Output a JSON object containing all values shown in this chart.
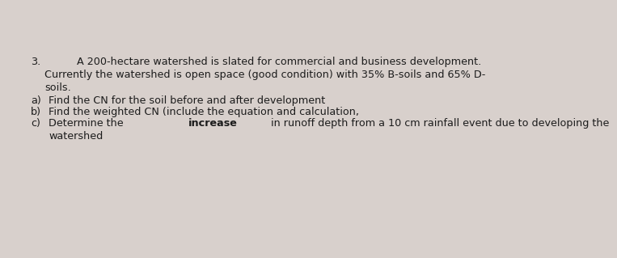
{
  "background_color": "#d8d0cc",
  "number": "3.",
  "line1": "A 200-hectare watershed is slated for commercial and business development.",
  "line2": "Currently the watershed is open space (good condition) with 35% B-soils and 65% D-",
  "line3": "soils.",
  "item_a_label": "a)",
  "item_a_text": "Find the CN for the soil before and after development",
  "item_b_label": "b)",
  "item_b_text": "Find the weighted CN (include the equation and calculation,",
  "item_c_label": "c)",
  "item_c_pre": "Determine the ",
  "item_c_bold": "increase",
  "item_c_post": " in runoff depth from a 10 cm rainfall event due to developing the",
  "item_c_wrap": "watershed",
  "font_size": 9.2,
  "text_color": "#1c1c1c",
  "font_family": "DejaVu Sans"
}
